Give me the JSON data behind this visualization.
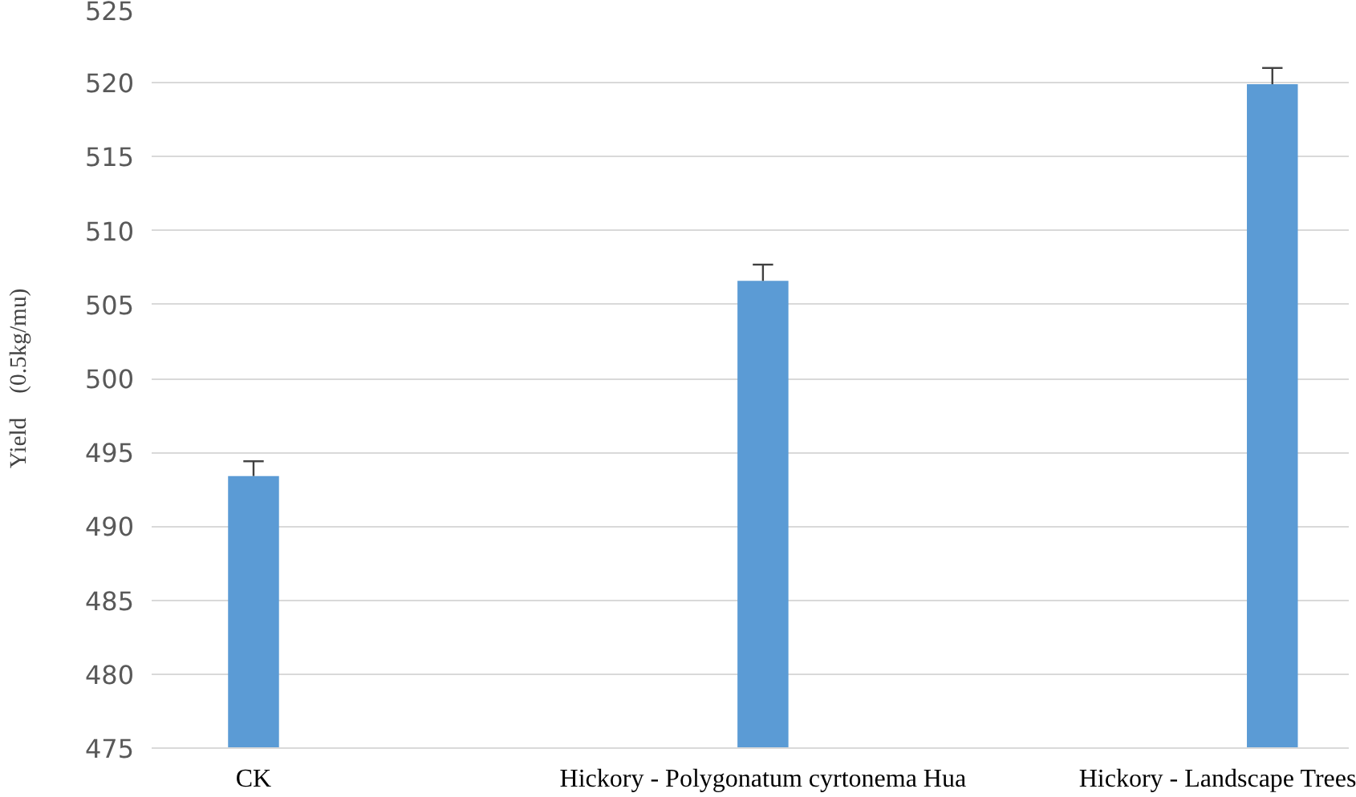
{
  "chart_data": {
    "type": "bar",
    "ylabel": "Yield　(0.5kg/mu)",
    "categories": [
      "CK",
      "Hickory - Polygonatum cyrtonema Hua",
      "Hickory - Landscape Trees"
    ],
    "values": [
      493.4,
      506.6,
      519.9
    ],
    "errors": [
      [
        493.4,
        494.4
      ],
      [
        506.6,
        507.7
      ],
      [
        519.9,
        521.0
      ]
    ],
    "color": "#5b9bd5",
    "ylim": [
      475,
      525
    ],
    "yticks": [
      475,
      480,
      485,
      490,
      495,
      500,
      505,
      510,
      515,
      520,
      525
    ],
    "grid": "y"
  }
}
